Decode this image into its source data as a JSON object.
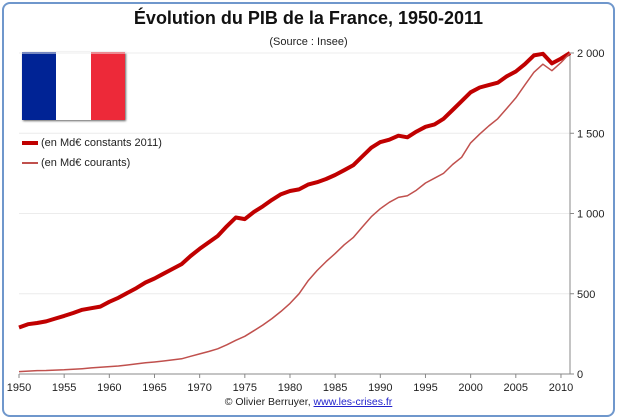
{
  "chart_data": {
    "type": "line",
    "title": "Évolution du PIB de la France, 1950-2011",
    "subtitle": "(Source : Insee)",
    "x": [
      1950,
      1951,
      1952,
      1953,
      1954,
      1955,
      1956,
      1957,
      1958,
      1959,
      1960,
      1961,
      1962,
      1963,
      1964,
      1965,
      1966,
      1967,
      1968,
      1969,
      1970,
      1971,
      1972,
      1973,
      1974,
      1975,
      1976,
      1977,
      1978,
      1979,
      1980,
      1981,
      1982,
      1983,
      1984,
      1985,
      1986,
      1987,
      1988,
      1989,
      1990,
      1991,
      1992,
      1993,
      1994,
      1995,
      1996,
      1997,
      1998,
      1999,
      2000,
      2001,
      2002,
      2003,
      2004,
      2005,
      2006,
      2007,
      2008,
      2009,
      2010,
      2011
    ],
    "series": [
      {
        "name": "(en Md€ constants 2011)",
        "color": "#c00000",
        "values": [
          290,
          310,
          318,
          328,
          345,
          362,
          380,
          400,
          410,
          420,
          450,
          475,
          505,
          535,
          570,
          595,
          625,
          655,
          685,
          735,
          780,
          820,
          860,
          920,
          975,
          965,
          1010,
          1045,
          1085,
          1120,
          1140,
          1150,
          1180,
          1195,
          1215,
          1240,
          1270,
          1300,
          1355,
          1410,
          1445,
          1460,
          1485,
          1475,
          1510,
          1540,
          1555,
          1590,
          1645,
          1700,
          1755,
          1785,
          1800,
          1815,
          1855,
          1885,
          1930,
          1985,
          1995,
          1935,
          1965,
          2000
        ]
      },
      {
        "name": "(en Md€ courants)",
        "color": "#c0504d",
        "values": [
          15,
          18,
          21,
          22,
          24,
          26,
          29,
          33,
          38,
          42,
          46,
          50,
          56,
          63,
          70,
          75,
          81,
          88,
          95,
          110,
          125,
          140,
          157,
          182,
          210,
          235,
          270,
          305,
          345,
          390,
          440,
          500,
          580,
          645,
          700,
          750,
          805,
          850,
          915,
          980,
          1030,
          1070,
          1100,
          1110,
          1145,
          1190,
          1220,
          1250,
          1305,
          1350,
          1440,
          1495,
          1545,
          1590,
          1655,
          1720,
          1800,
          1880,
          1930,
          1890,
          1940,
          2000
        ]
      }
    ],
    "x_ticks": [
      "1950",
      "1955",
      "1960",
      "1965",
      "1970",
      "1975",
      "1980",
      "1985",
      "1990",
      "1995",
      "2000",
      "2005",
      "2010"
    ],
    "y_ticks": [
      "0",
      "500",
      "1 000",
      "1 500",
      "2 000"
    ],
    "ylim": [
      0,
      2000
    ],
    "xlim": [
      1950,
      2011
    ],
    "y_axis_side": "right",
    "grid": true,
    "legend_placement": "left"
  },
  "flag_colors": [
    "#002395",
    "#ffffff",
    "#ed2939"
  ],
  "footer": {
    "copyright": "© Olivier Berruyer, ",
    "link": "www.les-crises.fr"
  }
}
